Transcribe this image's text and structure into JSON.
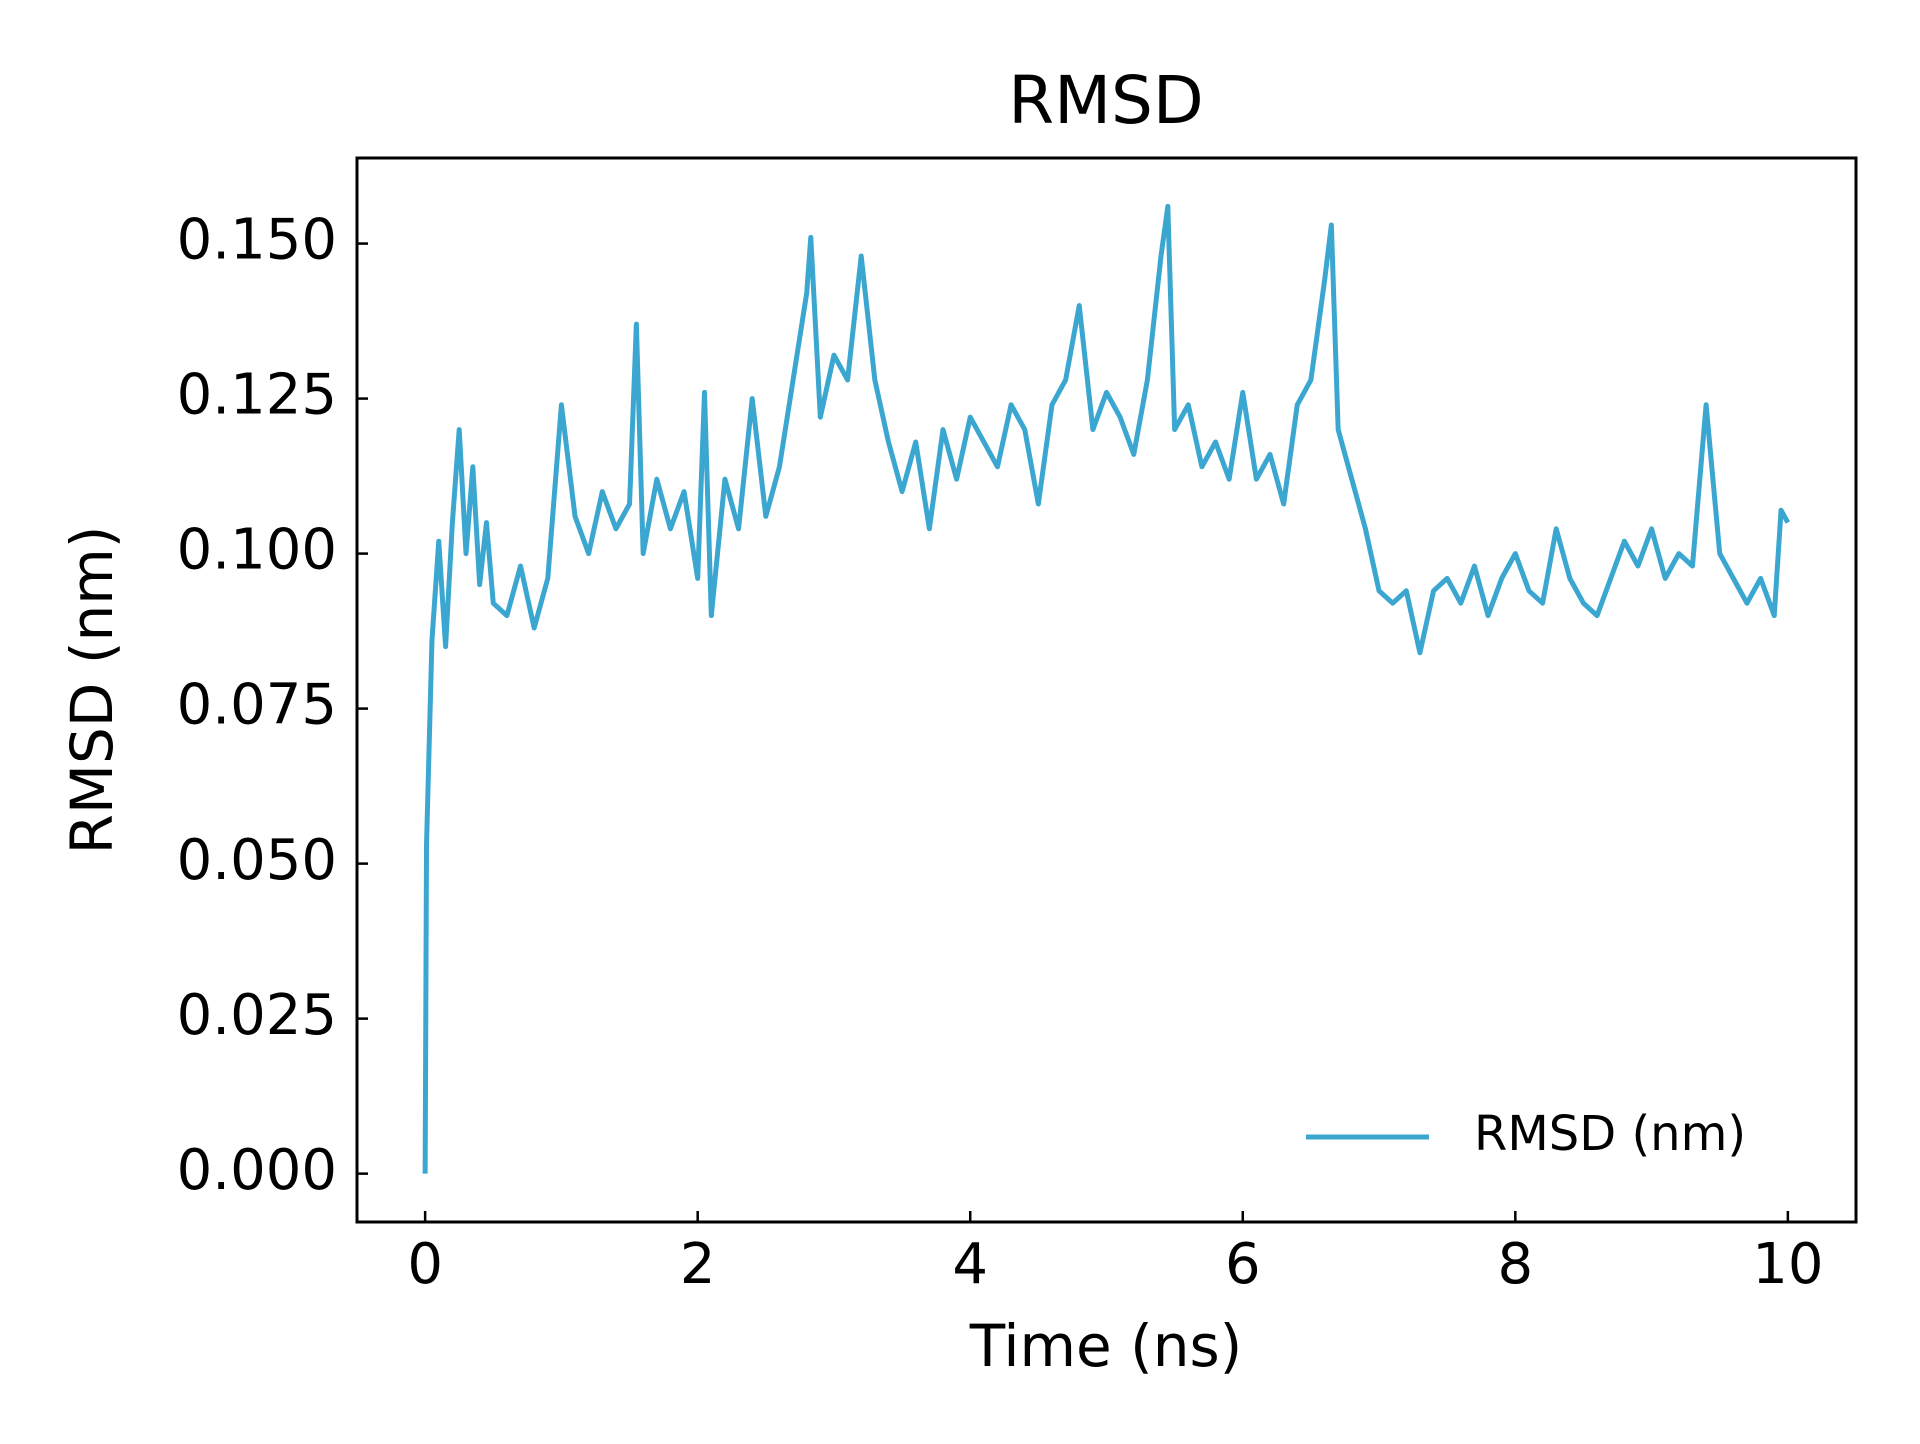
{
  "chart_data": {
    "type": "line",
    "title": "RMSD",
    "xlabel": "Time (ns)",
    "ylabel": "RMSD (nm)",
    "x": [
      0,
      0.01,
      0.05,
      0.1,
      0.15,
      0.2,
      0.25,
      0.3,
      0.35,
      0.4,
      0.45,
      0.5,
      0.6,
      0.7,
      0.8,
      0.9,
      1.0,
      1.1,
      1.2,
      1.3,
      1.4,
      1.5,
      1.55,
      1.6,
      1.7,
      1.8,
      1.9,
      2.0,
      2.05,
      2.1,
      2.2,
      2.3,
      2.4,
      2.5,
      2.6,
      2.7,
      2.8,
      2.83,
      2.9,
      3.0,
      3.1,
      3.2,
      3.3,
      3.4,
      3.5,
      3.6,
      3.7,
      3.8,
      3.9,
      4.0,
      4.1,
      4.2,
      4.3,
      4.4,
      4.5,
      4.6,
      4.7,
      4.8,
      4.9,
      5.0,
      5.1,
      5.2,
      5.3,
      5.4,
      5.45,
      5.5,
      5.6,
      5.7,
      5.8,
      5.9,
      6.0,
      6.1,
      6.2,
      6.3,
      6.4,
      6.5,
      6.6,
      6.65,
      6.7,
      6.8,
      6.9,
      7.0,
      7.1,
      7.2,
      7.3,
      7.4,
      7.5,
      7.6,
      7.7,
      7.8,
      7.9,
      8.0,
      8.1,
      8.2,
      8.3,
      8.4,
      8.5,
      8.6,
      8.7,
      8.8,
      8.9,
      9.0,
      9.1,
      9.2,
      9.3,
      9.4,
      9.5,
      9.6,
      9.7,
      9.8,
      9.9,
      9.95,
      10.0
    ],
    "series": [
      {
        "name": "RMSD (nm)",
        "color": "#3ba7d1",
        "values": [
          0.0,
          0.053,
          0.086,
          0.102,
          0.085,
          0.105,
          0.12,
          0.1,
          0.114,
          0.095,
          0.105,
          0.092,
          0.09,
          0.098,
          0.088,
          0.096,
          0.124,
          0.106,
          0.1,
          0.11,
          0.104,
          0.108,
          0.137,
          0.1,
          0.112,
          0.104,
          0.11,
          0.096,
          0.126,
          0.09,
          0.112,
          0.104,
          0.125,
          0.106,
          0.114,
          0.128,
          0.142,
          0.151,
          0.122,
          0.132,
          0.128,
          0.148,
          0.128,
          0.118,
          0.11,
          0.118,
          0.104,
          0.12,
          0.112,
          0.122,
          0.118,
          0.114,
          0.124,
          0.12,
          0.108,
          0.124,
          0.128,
          0.14,
          0.12,
          0.126,
          0.122,
          0.116,
          0.128,
          0.148,
          0.156,
          0.12,
          0.124,
          0.114,
          0.118,
          0.112,
          0.126,
          0.112,
          0.116,
          0.108,
          0.124,
          0.128,
          0.144,
          0.153,
          0.12,
          0.112,
          0.104,
          0.094,
          0.092,
          0.094,
          0.084,
          0.094,
          0.096,
          0.092,
          0.098,
          0.09,
          0.096,
          0.1,
          0.094,
          0.092,
          0.104,
          0.096,
          0.092,
          0.09,
          0.096,
          0.102,
          0.098,
          0.104,
          0.096,
          0.1,
          0.098,
          0.124,
          0.1,
          0.096,
          0.092,
          0.096,
          0.09,
          0.107,
          0.105
        ]
      }
    ],
    "xlim": [
      -0.5,
      10.5
    ],
    "ylim": [
      -0.0078,
      0.1638
    ],
    "xticks": [
      0,
      2,
      4,
      6,
      8,
      10
    ],
    "yticks": [
      {
        "value": 0,
        "label": "0.000"
      },
      {
        "value": 0.025,
        "label": "0.025"
      },
      {
        "value": 0.05,
        "label": "0.050"
      },
      {
        "value": 0.075,
        "label": "0.075"
      },
      {
        "value": 0.1,
        "label": "0.100"
      },
      {
        "value": 0.125,
        "label": "0.125"
      },
      {
        "value": 0.15,
        "label": "0.150"
      }
    ],
    "legend": "lower right",
    "grid": false
  }
}
